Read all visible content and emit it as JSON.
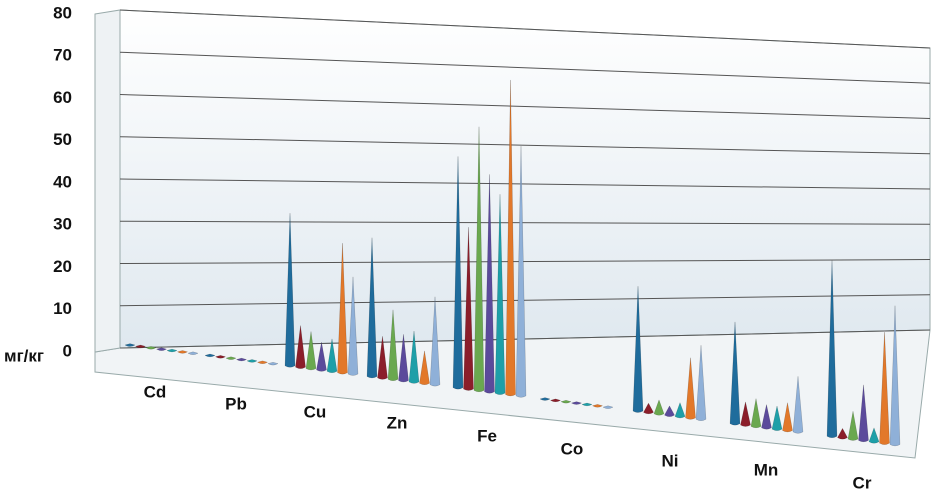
{
  "chart_data": {
    "type": "cone3d",
    "y_label": "мг/кг",
    "categories": [
      "Cd",
      "Pb",
      "Cu",
      "Zn",
      "Fe",
      "Co",
      "Ni",
      "Mn",
      "Cr"
    ],
    "ylim": [
      0,
      80
    ],
    "yticks": [
      0,
      10,
      20,
      30,
      40,
      50,
      60,
      70,
      80
    ],
    "grid": true,
    "series": [
      {
        "color": "#1f6c9c",
        "values": [
          0.3,
          0.3,
          33,
          30,
          50,
          0.3,
          27,
          22,
          38
        ]
      },
      {
        "color": "#8b1e2a",
        "values": [
          0.3,
          0.3,
          9,
          9,
          35,
          0.3,
          2,
          5,
          2
        ]
      },
      {
        "color": "#6aa84f",
        "values": [
          0.3,
          0.3,
          8,
          15,
          57,
          0.3,
          3,
          6,
          6
        ]
      },
      {
        "color": "#5b4a9b",
        "values": [
          0.3,
          0.3,
          6,
          10,
          47,
          0.3,
          2,
          5,
          12
        ]
      },
      {
        "color": "#1e9fa8",
        "values": [
          0.3,
          0.3,
          7,
          11,
          43,
          0.3,
          3,
          5,
          3
        ]
      },
      {
        "color": "#e2782a",
        "values": [
          0.3,
          0.3,
          28,
          7,
          68,
          0.3,
          13,
          6,
          24
        ]
      },
      {
        "color": "#8fb0d8",
        "values": [
          0.3,
          0.3,
          21,
          19,
          54,
          0.3,
          16,
          12,
          30
        ]
      }
    ]
  }
}
